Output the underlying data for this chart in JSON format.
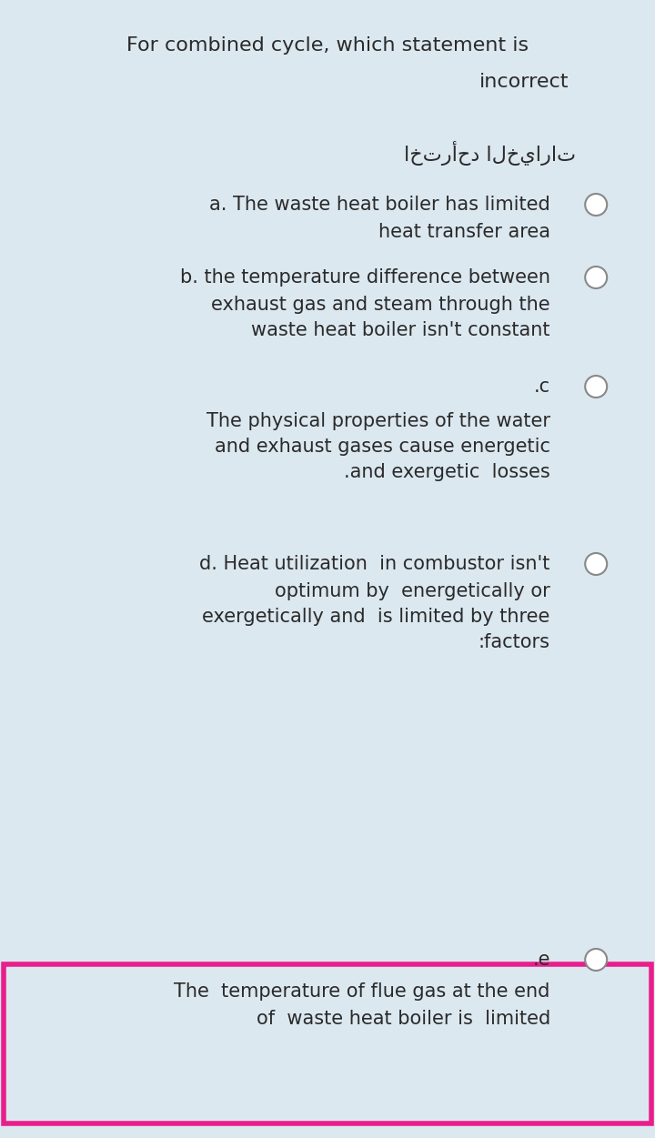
{
  "bg_color": "#dce8f0",
  "text_color": "#2a2a2a",
  "title_line1": "For combined cycle, which statement is",
  "title_line2": "incorrect",
  "arabic_label": "اخترأحد الخيارات",
  "option_a_line1": "a. The waste heat boiler has limited",
  "option_a_line2": "heat transfer area",
  "option_b_line1": "b. the temperature difference between",
  "option_b_line2": "exhaust gas and steam through the",
  "option_b_line3": "waste heat boiler isn't constant",
  "option_c_label": ".c",
  "option_c_line1": "The physical properties of the water",
  "option_c_line2": "and exhaust gases cause energetic",
  "option_c_line3": ".and exergetic  losses",
  "option_d_line1": "d. Heat utilization  in combustor isn't",
  "option_d_line2": "optimum by  energetically or",
  "option_d_line3": "exergetically and  is limited by three",
  "option_d_line4": ":factors",
  "option_e_label": ".e",
  "option_e_line1": "The  temperature of flue gas at the end",
  "option_e_line2": "of  waste heat boiler is  limited",
  "highlight_color": "#e91e8c",
  "font_size_title": 16,
  "font_size_text": 15,
  "font_size_arabic": 16
}
